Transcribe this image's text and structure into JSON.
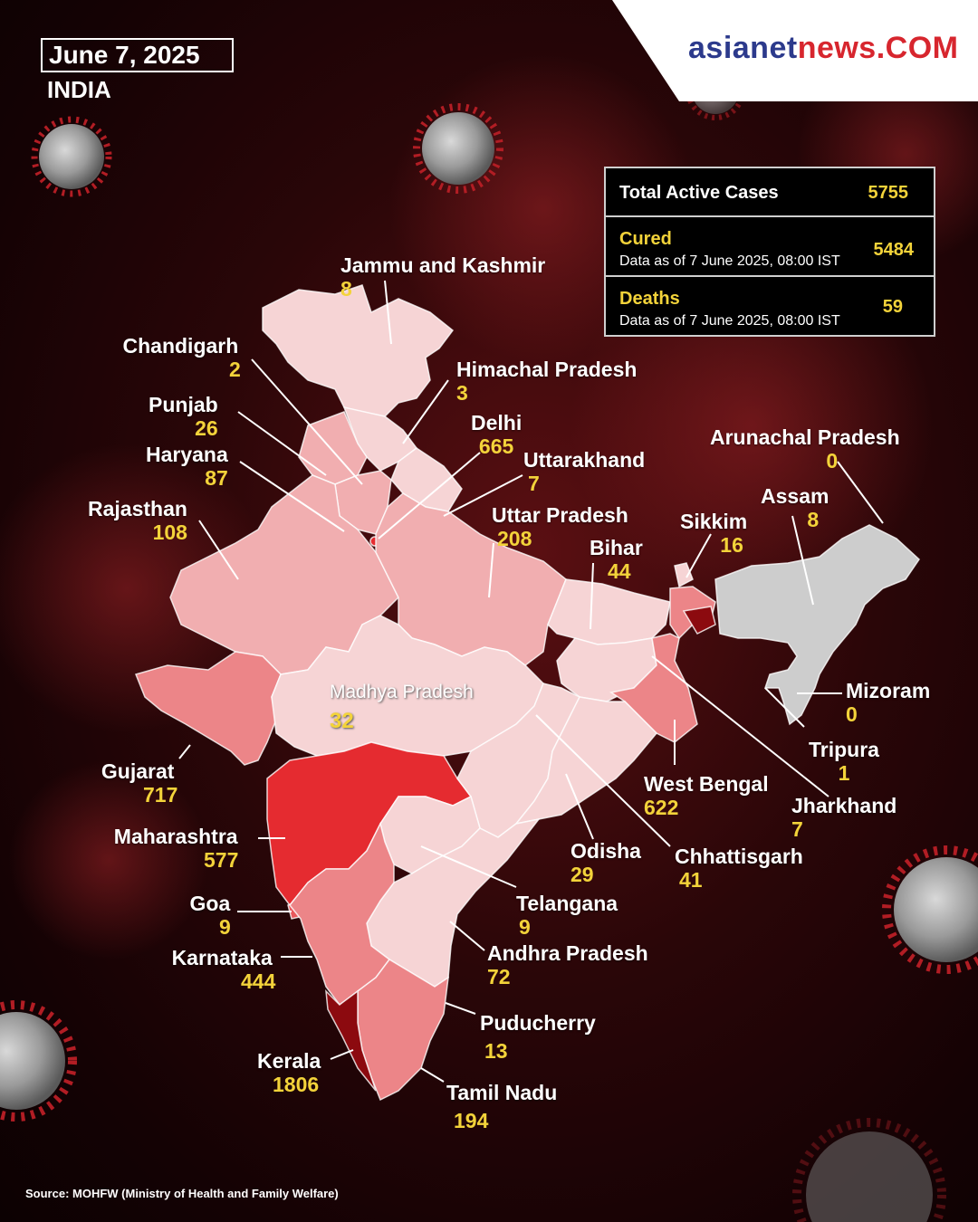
{
  "header": {
    "date": "June 7, 2025",
    "country": "INDIA"
  },
  "logo": {
    "part1": "asianet",
    "part2": "news.COM"
  },
  "stats": {
    "total": {
      "label": "Total Active Cases",
      "value": "5755"
    },
    "cured": {
      "label": "Cured",
      "note": "Data as of 7 June 2025, 08:00 IST",
      "value": "5484"
    },
    "deaths": {
      "label": "Deaths",
      "note": "Data as of 7 June 2025, 08:00 IST",
      "value": "59"
    }
  },
  "states": {
    "jk": {
      "name": "Jammu and Kashmir",
      "value": "8"
    },
    "chandigarh": {
      "name": "Chandigarh",
      "value": "2"
    },
    "hp": {
      "name": "Himachal Pradesh",
      "value": "3"
    },
    "punjab": {
      "name": "Punjab",
      "value": "26"
    },
    "delhi": {
      "name": "Delhi",
      "value": "665"
    },
    "haryana": {
      "name": "Haryana",
      "value": "87"
    },
    "uttarakhand": {
      "name": "Uttarakhand",
      "value": "7"
    },
    "arunachal": {
      "name": "Arunachal Pradesh",
      "value": "0"
    },
    "rajasthan": {
      "name": "Rajasthan",
      "value": "108"
    },
    "up": {
      "name": "Uttar Pradesh",
      "value": "208"
    },
    "assam": {
      "name": "Assam",
      "value": "8"
    },
    "sikkim": {
      "name": "Sikkim",
      "value": "16"
    },
    "bihar": {
      "name": "Bihar",
      "value": "44"
    },
    "mp": {
      "name": "Madhya Pradesh",
      "value": "32"
    },
    "mizoram": {
      "name": "Mizoram",
      "value": "0"
    },
    "tripura": {
      "name": "Tripura",
      "value": "1"
    },
    "gujarat": {
      "name": "Gujarat",
      "value": "717"
    },
    "wb": {
      "name": "West Bengal",
      "value": "622"
    },
    "jharkhand": {
      "name": "Jharkhand",
      "value": "7"
    },
    "maharashtra": {
      "name": "Maharashtra",
      "value": "577"
    },
    "odisha": {
      "name": "Odisha",
      "value": "29"
    },
    "chhattisgarh": {
      "name": "Chhattisgarh",
      "value": "41"
    },
    "goa": {
      "name": "Goa",
      "value": "9"
    },
    "telangana": {
      "name": "Telangana",
      "value": "9"
    },
    "karnataka": {
      "name": "Karnataka",
      "value": "444"
    },
    "ap": {
      "name": "Andhra Pradesh",
      "value": "72"
    },
    "puducherry": {
      "name": "Puducherry",
      "value": "13"
    },
    "kerala": {
      "name": "Kerala",
      "value": "1806"
    },
    "tn": {
      "name": "Tamil Nadu",
      "value": "194"
    }
  },
  "colors": {
    "very_low": "#f6d4d5",
    "low": "#f1aeb0",
    "medium": "#ec8588",
    "high": "#e8585c",
    "very_high": "#e52b30",
    "highest": "#8c0a0f",
    "northeast": "#cdcdcd",
    "accent": "#f3d33a"
  },
  "source": "Source: MOHFW (Ministry of Health and Family Welfare)"
}
